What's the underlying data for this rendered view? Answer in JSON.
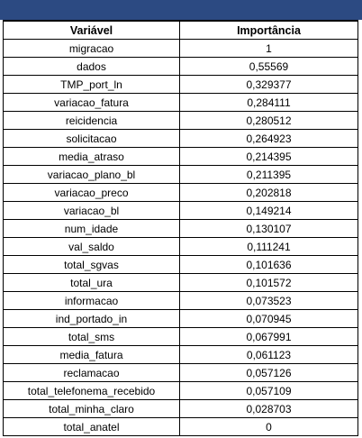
{
  "table": {
    "headers": [
      "Variável",
      "Importância"
    ],
    "rows": [
      [
        "migracao",
        "1"
      ],
      [
        "dados",
        "0,55569"
      ],
      [
        "TMP_port_ln",
        "0,329377"
      ],
      [
        "variacao_fatura",
        "0,284111"
      ],
      [
        "reicidencia",
        "0,280512"
      ],
      [
        "solicitacao",
        "0,264923"
      ],
      [
        "media_atraso",
        "0,214395"
      ],
      [
        "variacao_plano_bl",
        "0,211395"
      ],
      [
        "variacao_preco",
        "0,202818"
      ],
      [
        "variacao_bl",
        "0,149214"
      ],
      [
        "num_idade",
        "0,130107"
      ],
      [
        "val_saldo",
        "0,111241"
      ],
      [
        "total_sgvas",
        "0,101636"
      ],
      [
        "total_ura",
        "0,101572"
      ],
      [
        "informacao",
        "0,073523"
      ],
      [
        "ind_portado_in",
        "0,070945"
      ],
      [
        "total_sms",
        "0,067991"
      ],
      [
        "media_fatura",
        "0,061123"
      ],
      [
        "reclamacao",
        "0,057126"
      ],
      [
        "total_telefonema_recebido",
        "0,057109"
      ],
      [
        "total_minha_claro",
        "0,028703"
      ],
      [
        "total_anatel",
        "0"
      ]
    ]
  },
  "colors": {
    "header_bar": "#2c4a82",
    "grid_lines": "#000000",
    "cell_background": "#ffffff"
  }
}
